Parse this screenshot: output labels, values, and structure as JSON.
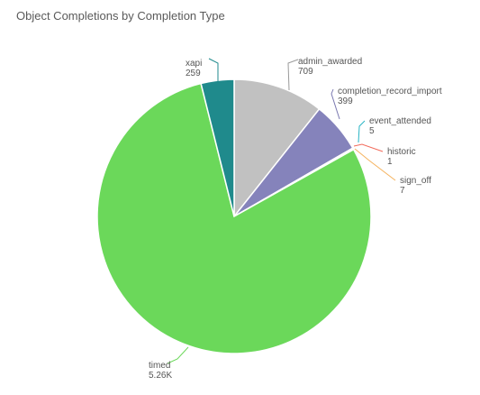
{
  "chart_data": {
    "type": "pie",
    "title": "Object Completions by Completion Type",
    "slices": [
      {
        "name": "admin_awarded",
        "value": 709,
        "label": "709",
        "color": "#c1c1c1",
        "leader": "#9a9a9a"
      },
      {
        "name": "completion_record_import",
        "value": 399,
        "label": "399",
        "color": "#8583bb",
        "leader": "#7a78b0"
      },
      {
        "name": "event_attended",
        "value": 5,
        "label": "5",
        "color": "#2ab5c5",
        "leader": "#2ab5c5"
      },
      {
        "name": "historic",
        "value": 1,
        "label": "1",
        "color": "#f26b5b",
        "leader": "#f26b5b"
      },
      {
        "name": "sign_off",
        "value": 7,
        "label": "7",
        "color": "#f5b25d",
        "leader": "#f5b25d"
      },
      {
        "name": "timed",
        "value": 5260,
        "label": "5.26K",
        "color": "#6bd85a",
        "leader": "#6bd85a"
      },
      {
        "name": "xapi",
        "value": 259,
        "label": "259",
        "color": "#1f8a8c",
        "leader": "#1f8a8c"
      }
    ]
  }
}
